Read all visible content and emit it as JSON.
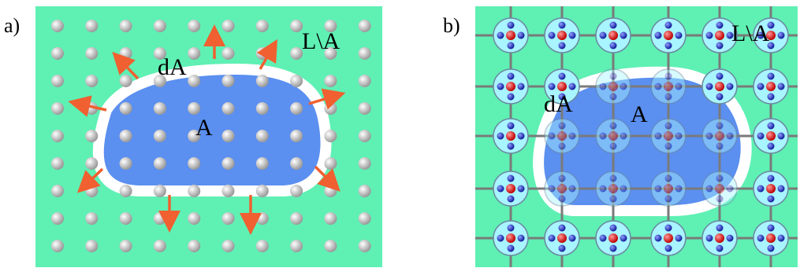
{
  "panels": [
    {
      "label": "a)",
      "boundary": "dA",
      "region": "A",
      "complement": "L\\A"
    },
    {
      "label": "b)",
      "boundary": "dA",
      "region": "A",
      "complement": "L\\A"
    }
  ]
}
